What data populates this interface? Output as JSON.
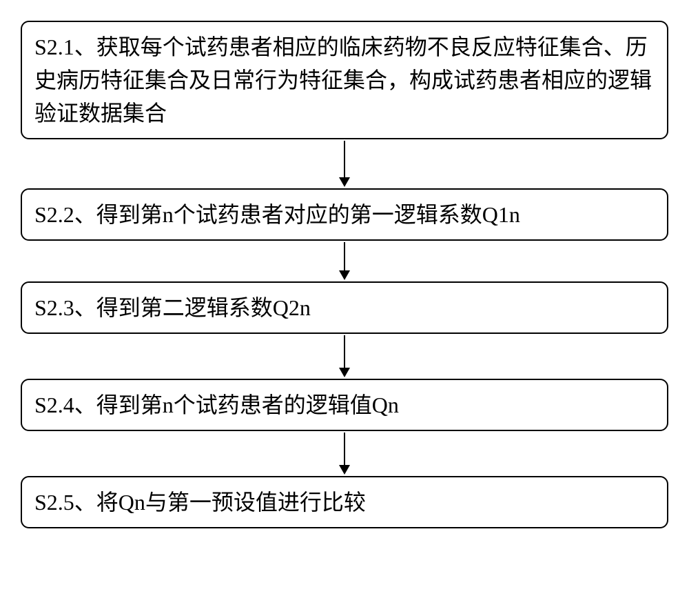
{
  "flowchart": {
    "type": "flowchart",
    "direction": "vertical",
    "background_color": "#ffffff",
    "box_style": {
      "border_color": "#000000",
      "border_width": 2,
      "border_radius": 12,
      "background_color": "#ffffff",
      "font_size": 32,
      "font_family": "SimSun",
      "text_color": "#000000"
    },
    "arrow_style": {
      "color": "#000000",
      "line_width": 2,
      "head_width": 16,
      "head_height": 14
    },
    "steps": [
      {
        "id": "s2-1",
        "text": "S2.1、获取每个试药患者相应的临床药物不良反应特征集合、历史病历特征集合及日常行为特征集合，构成试药患者相应的逻辑验证数据集合",
        "arrow_height": 68
      },
      {
        "id": "s2-2",
        "text": "S2.2、得到第n个试药患者对应的第一逻辑系数Q1n",
        "arrow_height": 56
      },
      {
        "id": "s2-3",
        "text": "S2.3、得到第二逻辑系数Q2n",
        "arrow_height": 62
      },
      {
        "id": "s2-4",
        "text": "S2.4、得到第n个试药患者的逻辑值Qn",
        "arrow_height": 62
      },
      {
        "id": "s2-5",
        "text": "S2.5、将Qn与第一预设值进行比较",
        "arrow_height": 0
      }
    ]
  }
}
